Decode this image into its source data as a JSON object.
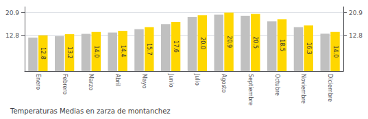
{
  "chart_data": {
    "type": "bar",
    "title": "Temperaturas Medias en zarza de montanchez",
    "categories": [
      "Enero",
      "Febrero",
      "Marzo",
      "Abril",
      "Mayo",
      "Junio",
      "Julio",
      "Agosto",
      "Septiembre",
      "Octubre",
      "Noviembre",
      "Diciembre"
    ],
    "series": [
      {
        "color": "#C0C0C0",
        "values": [
          12.0,
          12.5,
          13.3,
          13.8,
          15.0,
          16.8,
          19.3,
          20.2,
          19.8,
          17.8,
          15.7,
          13.4
        ]
      },
      {
        "color": "#FFD700",
        "values": [
          12.8,
          13.2,
          14.0,
          14.4,
          15.7,
          17.6,
          20.0,
          20.9,
          20.5,
          18.5,
          16.3,
          14.0
        ],
        "value_labels": [
          "12.8",
          "13.2",
          "14.0",
          "14.4",
          "15.7",
          "17.6",
          "20.0",
          "20.9",
          "20.5",
          "18.5",
          "16.3",
          "14.0"
        ]
      }
    ],
    "data_labels": true,
    "ylim": [
      0,
      22.99
    ],
    "yticks": [
      12.8,
      20.9
    ],
    "y2lim": [
      0,
      22.99
    ],
    "y2ticks": [
      12.8,
      20.9
    ],
    "grid": true
  }
}
